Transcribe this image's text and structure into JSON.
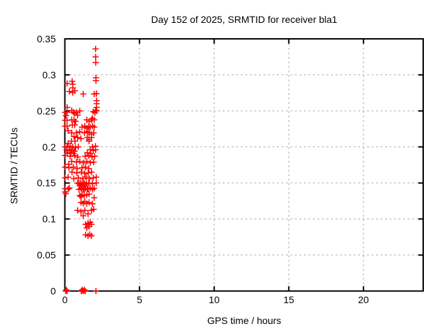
{
  "chart_data": {
    "type": "scatter",
    "title": "Day 152 of 2025, SRMTID for receiver bla1",
    "xlabel": "GPS time / hours",
    "ylabel": "SRMTID / TECUs",
    "xlim": [
      0,
      24
    ],
    "ylim": [
      0,
      0.35
    ],
    "xticks": [
      0,
      5,
      10,
      15,
      20
    ],
    "xtick_labels": [
      "0",
      "5",
      "10",
      "15",
      "20"
    ],
    "yticks": [
      0,
      0.05,
      0.1,
      0.15,
      0.2,
      0.25,
      0.3,
      0.35
    ],
    "ytick_labels": [
      "0",
      "0.05",
      "0.1",
      "0.15",
      "0.2",
      "0.25",
      "0.3",
      "0.35"
    ],
    "grid": true,
    "legend": "none",
    "marker": "plus",
    "marker_color": "#ff0000",
    "grid_color": "#b0b0b0",
    "border_color": "#000000",
    "series": [
      {
        "name": "SRMTID",
        "points": [
          [
            2.06,
            0.336
          ],
          [
            2.06,
            0.325
          ],
          [
            2.07,
            0.317
          ],
          [
            2.08,
            0.296
          ],
          [
            2.08,
            0.292
          ],
          [
            0.15,
            0.288
          ],
          [
            0.49,
            0.291
          ],
          [
            0.53,
            0.287
          ],
          [
            0.53,
            0.282
          ],
          [
            0.66,
            0.278
          ],
          [
            0.3,
            0.277
          ],
          [
            0.53,
            0.2755
          ],
          [
            1.23,
            0.2735
          ],
          [
            1.96,
            0.2735
          ],
          [
            2.12,
            0.274
          ],
          [
            2.13,
            0.264
          ],
          [
            2.13,
            0.26
          ],
          [
            2.13,
            0.255
          ],
          [
            2.13,
            0.25
          ],
          [
            2.01,
            0.2475
          ],
          [
            1.9,
            0.249
          ],
          [
            2.06,
            0.251
          ],
          [
            0.15,
            0.255
          ],
          [
            0.15,
            0.248
          ],
          [
            0.02,
            0.248
          ],
          [
            0.07,
            0.2435
          ],
          [
            0.46,
            0.2505
          ],
          [
            0.57,
            0.248
          ],
          [
            0.66,
            0.2465
          ],
          [
            0.77,
            0.248
          ],
          [
            0.85,
            0.244
          ],
          [
            1.0,
            0.25
          ],
          [
            0.15,
            0.237
          ],
          [
            0.02,
            0.237
          ],
          [
            0.46,
            0.2375
          ],
          [
            0.61,
            0.2375
          ],
          [
            0.72,
            0.2355
          ],
          [
            0.5,
            0.2305
          ],
          [
            0.66,
            0.2305
          ],
          [
            0.15,
            0.229
          ],
          [
            0.02,
            0.229
          ],
          [
            1.47,
            0.2375
          ],
          [
            1.62,
            0.2355
          ],
          [
            1.78,
            0.2375
          ],
          [
            1.85,
            0.2395
          ],
          [
            1.96,
            0.2375
          ],
          [
            1.15,
            0.2275
          ],
          [
            1.34,
            0.229
          ],
          [
            1.47,
            0.226
          ],
          [
            1.59,
            0.2275
          ],
          [
            1.7,
            0.2275
          ],
          [
            1.85,
            0.229
          ],
          [
            1.96,
            0.2275
          ],
          [
            0.22,
            0.2225
          ],
          [
            0.46,
            0.2195
          ],
          [
            0.77,
            0.2195
          ],
          [
            1.0,
            0.221
          ],
          [
            1.31,
            0.2195
          ],
          [
            1.5,
            0.221
          ],
          [
            1.62,
            0.2195
          ],
          [
            1.78,
            0.2175
          ],
          [
            1.93,
            0.2195
          ],
          [
            0.61,
            0.2145
          ],
          [
            0.85,
            0.213
          ],
          [
            1.08,
            0.2115
          ],
          [
            1.5,
            0.213
          ],
          [
            1.62,
            0.2105
          ],
          [
            1.78,
            0.213
          ],
          [
            0.44,
            0.208
          ],
          [
            0.68,
            0.208
          ],
          [
            1.62,
            0.208
          ],
          [
            0.22,
            0.205
          ],
          [
            0.02,
            0.2
          ],
          [
            0.15,
            0.2
          ],
          [
            0.35,
            0.201
          ],
          [
            0.53,
            0.2
          ],
          [
            0.72,
            0.199
          ],
          [
            0.9,
            0.2
          ],
          [
            1.85,
            0.2
          ],
          [
            2.05,
            0.201
          ],
          [
            0.12,
            0.196
          ],
          [
            0.3,
            0.195
          ],
          [
            0.45,
            0.196
          ],
          [
            0.65,
            0.194
          ],
          [
            1.7,
            0.196
          ],
          [
            1.9,
            0.195
          ],
          [
            2.06,
            0.196
          ],
          [
            0.17,
            0.191
          ],
          [
            0.4,
            0.192
          ],
          [
            0.58,
            0.191
          ],
          [
            1.5,
            0.192
          ],
          [
            1.72,
            0.191
          ],
          [
            0.02,
            0.188
          ],
          [
            0.35,
            0.187
          ],
          [
            0.66,
            0.188
          ],
          [
            0.86,
            0.186
          ],
          [
            1.36,
            0.187
          ],
          [
            1.6,
            0.188
          ],
          [
            1.82,
            0.186
          ],
          [
            2.0,
            0.187
          ],
          [
            0.46,
            0.18
          ],
          [
            0.78,
            0.179
          ],
          [
            1.0,
            0.18
          ],
          [
            1.25,
            0.178
          ],
          [
            1.47,
            0.18
          ],
          [
            1.7,
            0.178
          ],
          [
            1.93,
            0.179
          ],
          [
            0.25,
            0.176
          ],
          [
            0.02,
            0.172
          ],
          [
            0.28,
            0.171
          ],
          [
            0.56,
            0.172
          ],
          [
            0.82,
            0.17
          ],
          [
            1.15,
            0.171
          ],
          [
            1.38,
            0.172
          ],
          [
            1.6,
            0.17
          ],
          [
            0.48,
            0.165
          ],
          [
            0.8,
            0.164
          ],
          [
            1.1,
            0.165
          ],
          [
            1.33,
            0.163
          ],
          [
            1.56,
            0.164
          ],
          [
            1.78,
            0.165
          ],
          [
            0.02,
            0.157
          ],
          [
            0.22,
            0.158
          ],
          [
            0.6,
            0.156
          ],
          [
            0.9,
            0.157
          ],
          [
            1.2,
            0.156
          ],
          [
            1.42,
            0.158
          ],
          [
            1.65,
            0.156
          ],
          [
            1.9,
            0.157
          ],
          [
            2.1,
            0.158
          ],
          [
            0.85,
            0.15
          ],
          [
            0.95,
            0.149
          ],
          [
            1.05,
            0.15
          ],
          [
            1.1,
            0.148
          ],
          [
            1.2,
            0.149
          ],
          [
            1.28,
            0.15
          ],
          [
            1.35,
            0.148
          ],
          [
            1.45,
            0.149
          ],
          [
            1.6,
            0.15
          ],
          [
            1.85,
            0.149
          ],
          [
            2.1,
            0.15
          ],
          [
            1.0,
            0.146
          ],
          [
            1.15,
            0.146
          ],
          [
            1.3,
            0.146
          ],
          [
            0.02,
            0.142
          ],
          [
            0.3,
            0.143
          ],
          [
            0.95,
            0.141
          ],
          [
            1.12,
            0.142
          ],
          [
            1.3,
            0.141
          ],
          [
            1.5,
            0.142
          ],
          [
            1.7,
            0.143
          ],
          [
            0.22,
            0.1415
          ],
          [
            1.08,
            0.1425
          ],
          [
            1.23,
            0.141
          ],
          [
            1.39,
            0.1425
          ],
          [
            1.55,
            0.1415
          ],
          [
            1.85,
            0.141
          ],
          [
            1.96,
            0.1425
          ],
          [
            0.02,
            0.1375
          ],
          [
            0.07,
            0.135
          ],
          [
            1.0,
            0.1325
          ],
          [
            1.08,
            0.131
          ],
          [
            1.15,
            0.1335
          ],
          [
            1.3,
            0.1325
          ],
          [
            1.47,
            0.1335
          ],
          [
            1.62,
            0.1345
          ],
          [
            1.96,
            0.1295
          ],
          [
            1.08,
            0.123
          ],
          [
            1.23,
            0.1215
          ],
          [
            1.34,
            0.124
          ],
          [
            1.47,
            0.1215
          ],
          [
            1.62,
            0.123
          ],
          [
            1.85,
            0.121
          ],
          [
            0.85,
            0.112
          ],
          [
            1.08,
            0.11
          ],
          [
            1.34,
            0.112
          ],
          [
            1.78,
            0.112
          ],
          [
            1.93,
            0.1135
          ],
          [
            1.23,
            0.1045
          ],
          [
            1.55,
            0.107
          ],
          [
            1.39,
            0.0925
          ],
          [
            1.55,
            0.094
          ],
          [
            1.7,
            0.0955
          ],
          [
            1.78,
            0.0925
          ],
          [
            1.62,
            0.0895
          ],
          [
            1.47,
            0.0875
          ],
          [
            1.39,
            0.078
          ],
          [
            1.55,
            0.0765
          ],
          [
            1.67,
            0.0785
          ],
          [
            1.78,
            0.0765
          ],
          [
            0.05,
            0
          ],
          [
            0.1,
            0.0015
          ],
          [
            0.15,
            0
          ],
          [
            1.1,
            0
          ],
          [
            1.16,
            0.0015
          ],
          [
            1.22,
            0
          ],
          [
            1.3,
            0.0015
          ],
          [
            1.36,
            0
          ],
          [
            2.08,
            0
          ]
        ]
      }
    ]
  }
}
